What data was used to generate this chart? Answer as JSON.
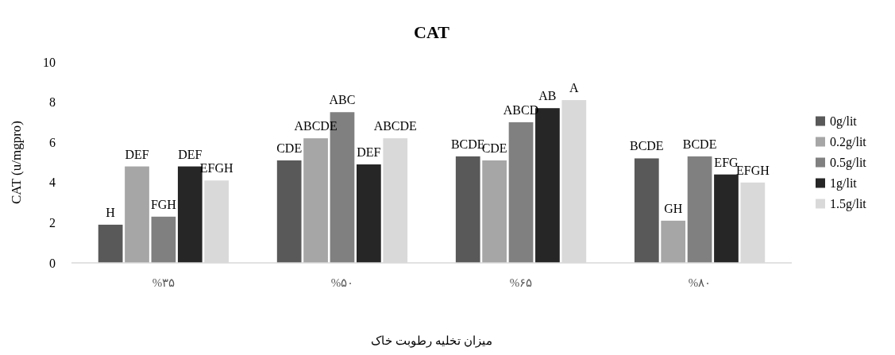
{
  "chart_data": {
    "type": "bar",
    "title": "CAT",
    "xlabel": "میزان تخلیه رطوبت خاک",
    "ylabel": "CAT (u/mgpro)",
    "categories": [
      "%۳۵",
      "%۵۰",
      "%۶۵",
      "%۸۰"
    ],
    "series": [
      {
        "name": "0g/lit",
        "color": "#595959",
        "values": [
          1.9,
          5.1,
          5.3,
          5.2
        ],
        "value_labels": [
          "H",
          "CDE",
          "BCDE",
          "BCDE"
        ]
      },
      {
        "name": "0.2g/lit",
        "color": "#a6a6a6",
        "values": [
          4.8,
          6.2,
          5.1,
          2.1
        ],
        "value_labels": [
          "DEF",
          "ABCDE",
          "CDE",
          "GH"
        ]
      },
      {
        "name": "0.5g/lit",
        "color": "#808080",
        "values": [
          2.3,
          7.5,
          7.0,
          5.3
        ],
        "value_labels": [
          "FGH",
          "ABC",
          "ABCD",
          "BCDE"
        ]
      },
      {
        "name": "1g/lit",
        "color": "#262626",
        "values": [
          4.8,
          4.9,
          7.7,
          4.4
        ],
        "value_labels": [
          "DEF",
          "DEF",
          "AB",
          "EFG"
        ]
      },
      {
        "name": "1.5g/lit",
        "color": "#d9d9d9",
        "values": [
          4.1,
          6.2,
          8.1,
          4.0
        ],
        "value_labels": [
          "EFGH",
          "ABCDE",
          "A",
          "EFGH"
        ]
      }
    ],
    "ylim": [
      0,
      10
    ],
    "yticks": [
      0,
      2,
      4,
      6,
      8,
      10
    ],
    "grid": false,
    "legend": "right"
  }
}
